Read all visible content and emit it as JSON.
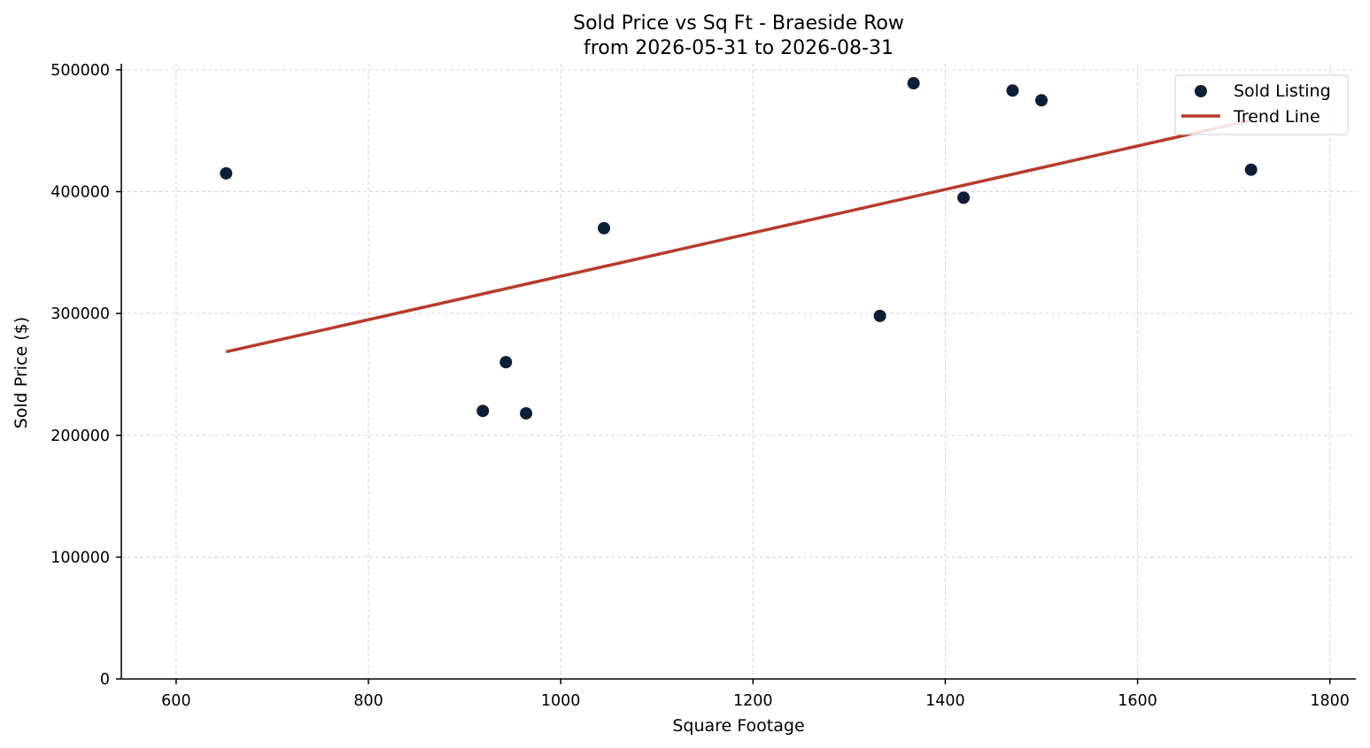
{
  "chart_data": {
    "type": "scatter",
    "title": "Sold Price vs Sq Ft - Braeside Row",
    "subtitle": "from 2026-05-31 to 2026-08-31",
    "xlabel": "Square Footage",
    "ylabel": "Sold Price ($)",
    "xlim": [
      543,
      1827
    ],
    "ylim": [
      0,
      505000
    ],
    "xticks": [
      600,
      800,
      1000,
      1200,
      1400,
      1600,
      1800
    ],
    "yticks": [
      0,
      100000,
      200000,
      300000,
      400000,
      500000
    ],
    "grid": true,
    "legend_position": "top-right",
    "series": [
      {
        "name": "Sold Listing",
        "kind": "scatter",
        "color": "#0d1f38",
        "points": [
          {
            "x": 652,
            "y": 415000
          },
          {
            "x": 919,
            "y": 220000
          },
          {
            "x": 943,
            "y": 260000
          },
          {
            "x": 964,
            "y": 218000
          },
          {
            "x": 1045,
            "y": 370000
          },
          {
            "x": 1332,
            "y": 298000
          },
          {
            "x": 1367,
            "y": 489000
          },
          {
            "x": 1419,
            "y": 395000
          },
          {
            "x": 1470,
            "y": 483000
          },
          {
            "x": 1500,
            "y": 475000
          },
          {
            "x": 1718,
            "y": 418000
          }
        ]
      },
      {
        "name": "Trend Line",
        "kind": "line",
        "color": "#b73b2c",
        "points": [
          {
            "x": 652,
            "y": 268500
          },
          {
            "x": 1718,
            "y": 458500
          }
        ]
      }
    ]
  }
}
